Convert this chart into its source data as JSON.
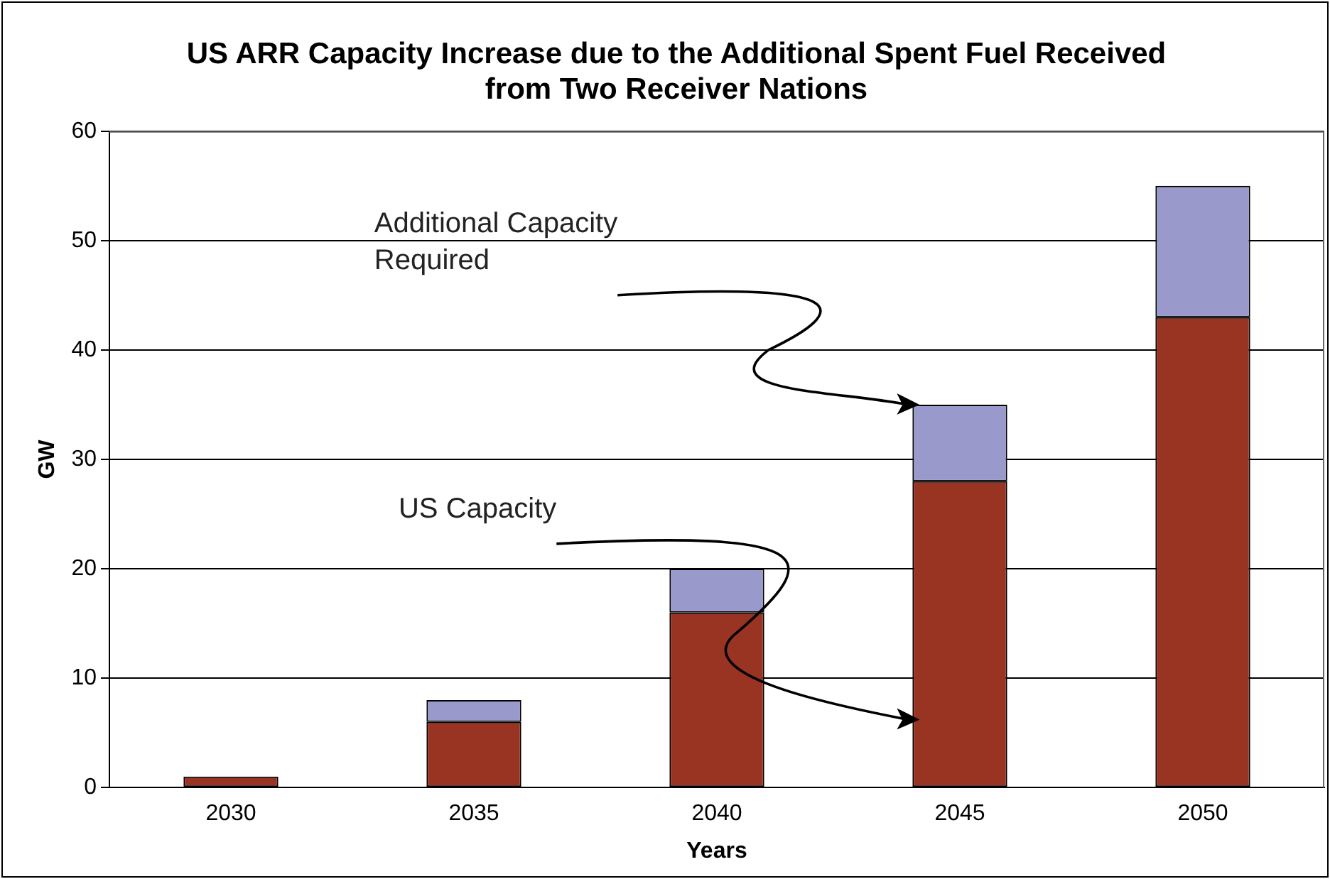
{
  "chart_data": {
    "type": "bar",
    "title": "US ARR Capacity Increase due to the Additional Spent Fuel Received from Two Receiver Nations",
    "xlabel": "Years",
    "ylabel": "GW",
    "categories": [
      "2030",
      "2035",
      "2040",
      "2045",
      "2050"
    ],
    "series": [
      {
        "name": "US Capacity",
        "color": "#993322",
        "values": [
          1,
          6,
          16,
          28,
          43
        ]
      },
      {
        "name": "Additional Capacity Required",
        "color": "#9999cc",
        "values": [
          0,
          2,
          4,
          7,
          12
        ]
      }
    ],
    "stacked": true,
    "ylim": [
      0,
      60
    ],
    "yticks": [
      0,
      10,
      20,
      30,
      40,
      50,
      60
    ],
    "grid": "y",
    "legend": false
  }
}
